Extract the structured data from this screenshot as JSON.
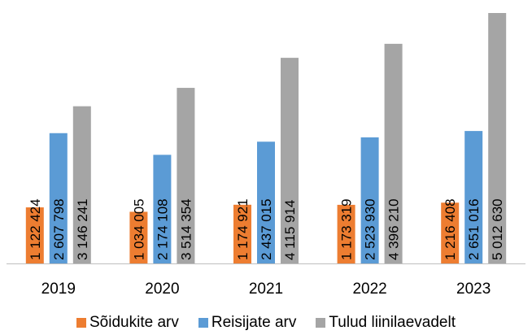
{
  "chart_data": {
    "type": "bar",
    "categories": [
      "2019",
      "2020",
      "2021",
      "2022",
      "2023"
    ],
    "series": [
      {
        "name": "Sõidukite arv",
        "color": "#ED7D31",
        "values": [
          1122424,
          1034005,
          1174921,
          1173319,
          1216408
        ],
        "labels": [
          "1 122 424",
          "1 034 005",
          "1 174 921",
          "1 173 319",
          "1 216 408"
        ]
      },
      {
        "name": "Reisijate arv",
        "color": "#5B9BD5",
        "values": [
          2607798,
          2174108,
          2437015,
          2523930,
          2651016
        ],
        "labels": [
          "2 607 798",
          "2 174 108",
          "2 437 015",
          "2 523 930",
          "2 651 016"
        ]
      },
      {
        "name": "Tulud liinilaevadelt",
        "color": "#A5A5A5",
        "values": [
          3146241,
          3514354,
          4115914,
          4396210,
          5012630
        ],
        "labels": [
          "3 146 241",
          "3 514 354",
          "4 115 914",
          "4 396 210",
          "5 012 630"
        ]
      }
    ],
    "ylim": [
      0,
      5012630
    ],
    "grid": false,
    "legend": "bottom"
  }
}
